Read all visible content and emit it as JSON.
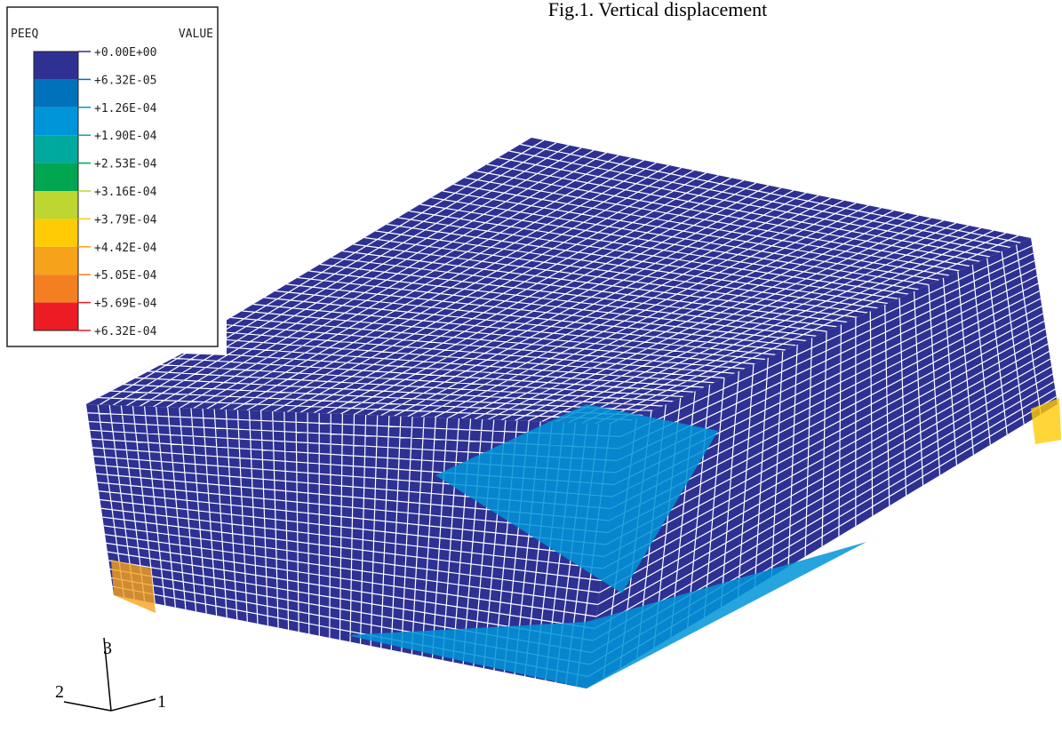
{
  "title": "Fig.1. Vertical displacement",
  "legend": {
    "variable": "PEEQ",
    "header": "VALUE",
    "values": [
      "+0.00E+00",
      "+6.32E-05",
      "+1.26E-04",
      "+1.90E-04",
      "+2.53E-04",
      "+3.16E-04",
      "+3.79E-04",
      "+4.42E-04",
      "+5.05E-04",
      "+5.69E-04",
      "+6.32E-04"
    ],
    "colors": [
      "#2e3192",
      "#0072bc",
      "#0094d8",
      "#00a99d",
      "#00a651",
      "#bed630",
      "#ffcb05",
      "#f7a21b",
      "#f47f20",
      "#ed1c24"
    ]
  },
  "axes": {
    "labels": [
      "3",
      "1",
      "2"
    ]
  }
}
